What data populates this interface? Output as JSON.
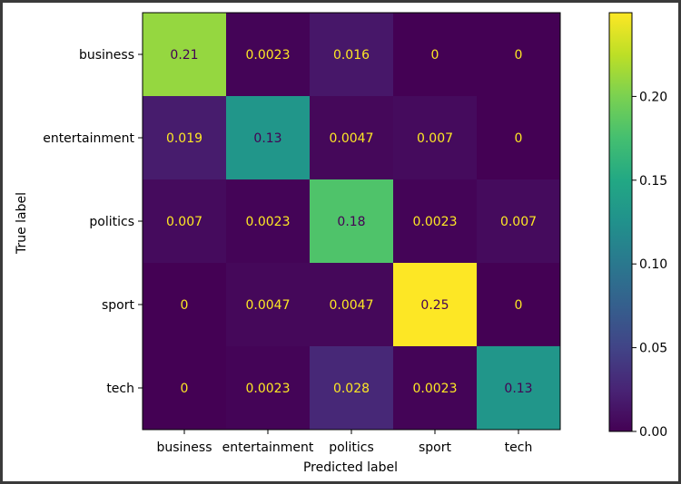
{
  "chart_data": {
    "type": "heatmap",
    "title": "",
    "xlabel": "Predicted label",
    "ylabel": "True label",
    "x_categories": [
      "business",
      "entertainment",
      "politics",
      "sport",
      "tech"
    ],
    "y_categories": [
      "business",
      "entertainment",
      "politics",
      "sport",
      "tech"
    ],
    "values": [
      [
        0.21,
        0.0023,
        0.016,
        0,
        0
      ],
      [
        0.019,
        0.13,
        0.0047,
        0.007,
        0
      ],
      [
        0.007,
        0.0023,
        0.18,
        0.0023,
        0.007
      ],
      [
        0,
        0.0047,
        0.0047,
        0.25,
        0
      ],
      [
        0,
        0.0023,
        0.028,
        0.0023,
        0.13
      ]
    ],
    "value_labels": [
      [
        "0.21",
        "0.0023",
        "0.016",
        "0",
        "0"
      ],
      [
        "0.019",
        "0.13",
        "0.0047",
        "0.007",
        "0"
      ],
      [
        "0.007",
        "0.0023",
        "0.18",
        "0.0023",
        "0.007"
      ],
      [
        "0",
        "0.0047",
        "0.0047",
        "0.25",
        "0"
      ],
      [
        "0",
        "0.0023",
        "0.028",
        "0.0023",
        "0.13"
      ]
    ],
    "colormap": "viridis",
    "colorbar": {
      "min": 0,
      "max": 0.25,
      "ticks": [
        0.0,
        0.05,
        0.1,
        0.15,
        0.2
      ],
      "tick_labels": [
        "0.00",
        "0.05",
        "0.10",
        "0.15",
        "0.20"
      ]
    },
    "text_colors": {
      "light": "#fde725",
      "dark": "#440154"
    },
    "grid": false,
    "legend": "colorbar-right"
  }
}
